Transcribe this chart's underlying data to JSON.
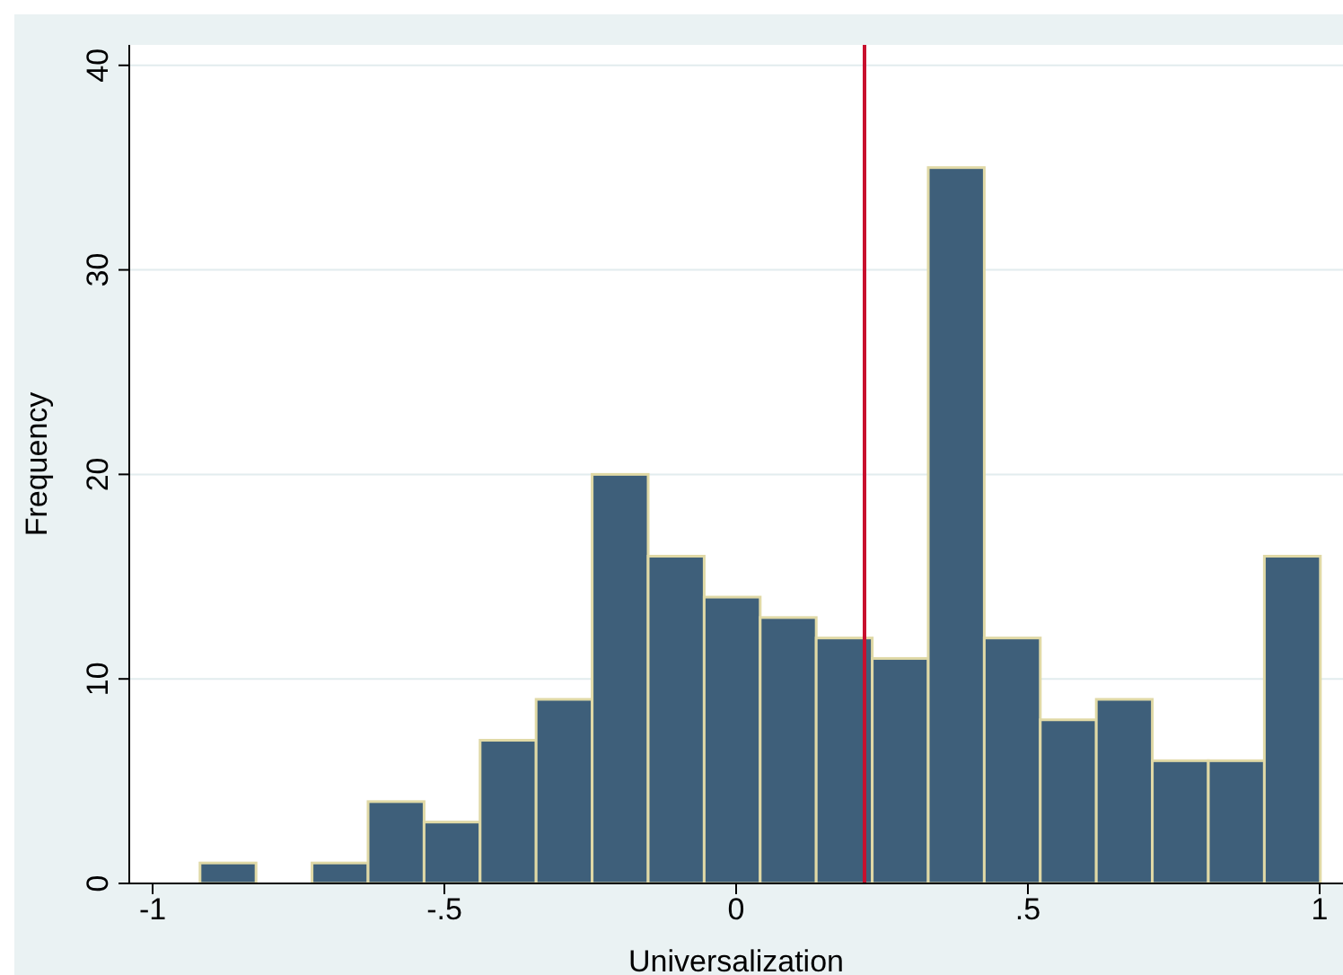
{
  "chart_data": {
    "type": "histogram",
    "xlabel": "Universalization",
    "ylabel": "Frequency",
    "bins": [
      -0.92,
      -0.824,
      -0.728,
      -0.632,
      -0.536,
      -0.44,
      -0.344,
      -0.248,
      -0.152,
      -0.056,
      0.04,
      0.136,
      0.232,
      0.328,
      0.424,
      0.52,
      0.616,
      0.712,
      0.808,
      0.904,
      1.0
    ],
    "values": [
      1,
      0,
      1,
      4,
      3,
      7,
      9,
      20,
      16,
      14,
      13,
      12,
      11,
      35,
      12,
      8,
      9,
      6,
      6,
      16
    ],
    "color": "#3e5f7a",
    "xlim": [
      -1.04,
      1.04
    ],
    "xticks": [
      {
        "value": -1,
        "label": "-1"
      },
      {
        "value": -0.5,
        "label": "-.5"
      },
      0,
      {
        "value": 0.5,
        "label": ".5"
      },
      1
    ],
    "ylim": [
      0,
      41
    ],
    "yticks": [
      0,
      10,
      20,
      30,
      40
    ],
    "grid": "y",
    "ref_lines": [
      {
        "axis": "x",
        "value": 0.22,
        "color": "#c8102e"
      }
    ]
  }
}
